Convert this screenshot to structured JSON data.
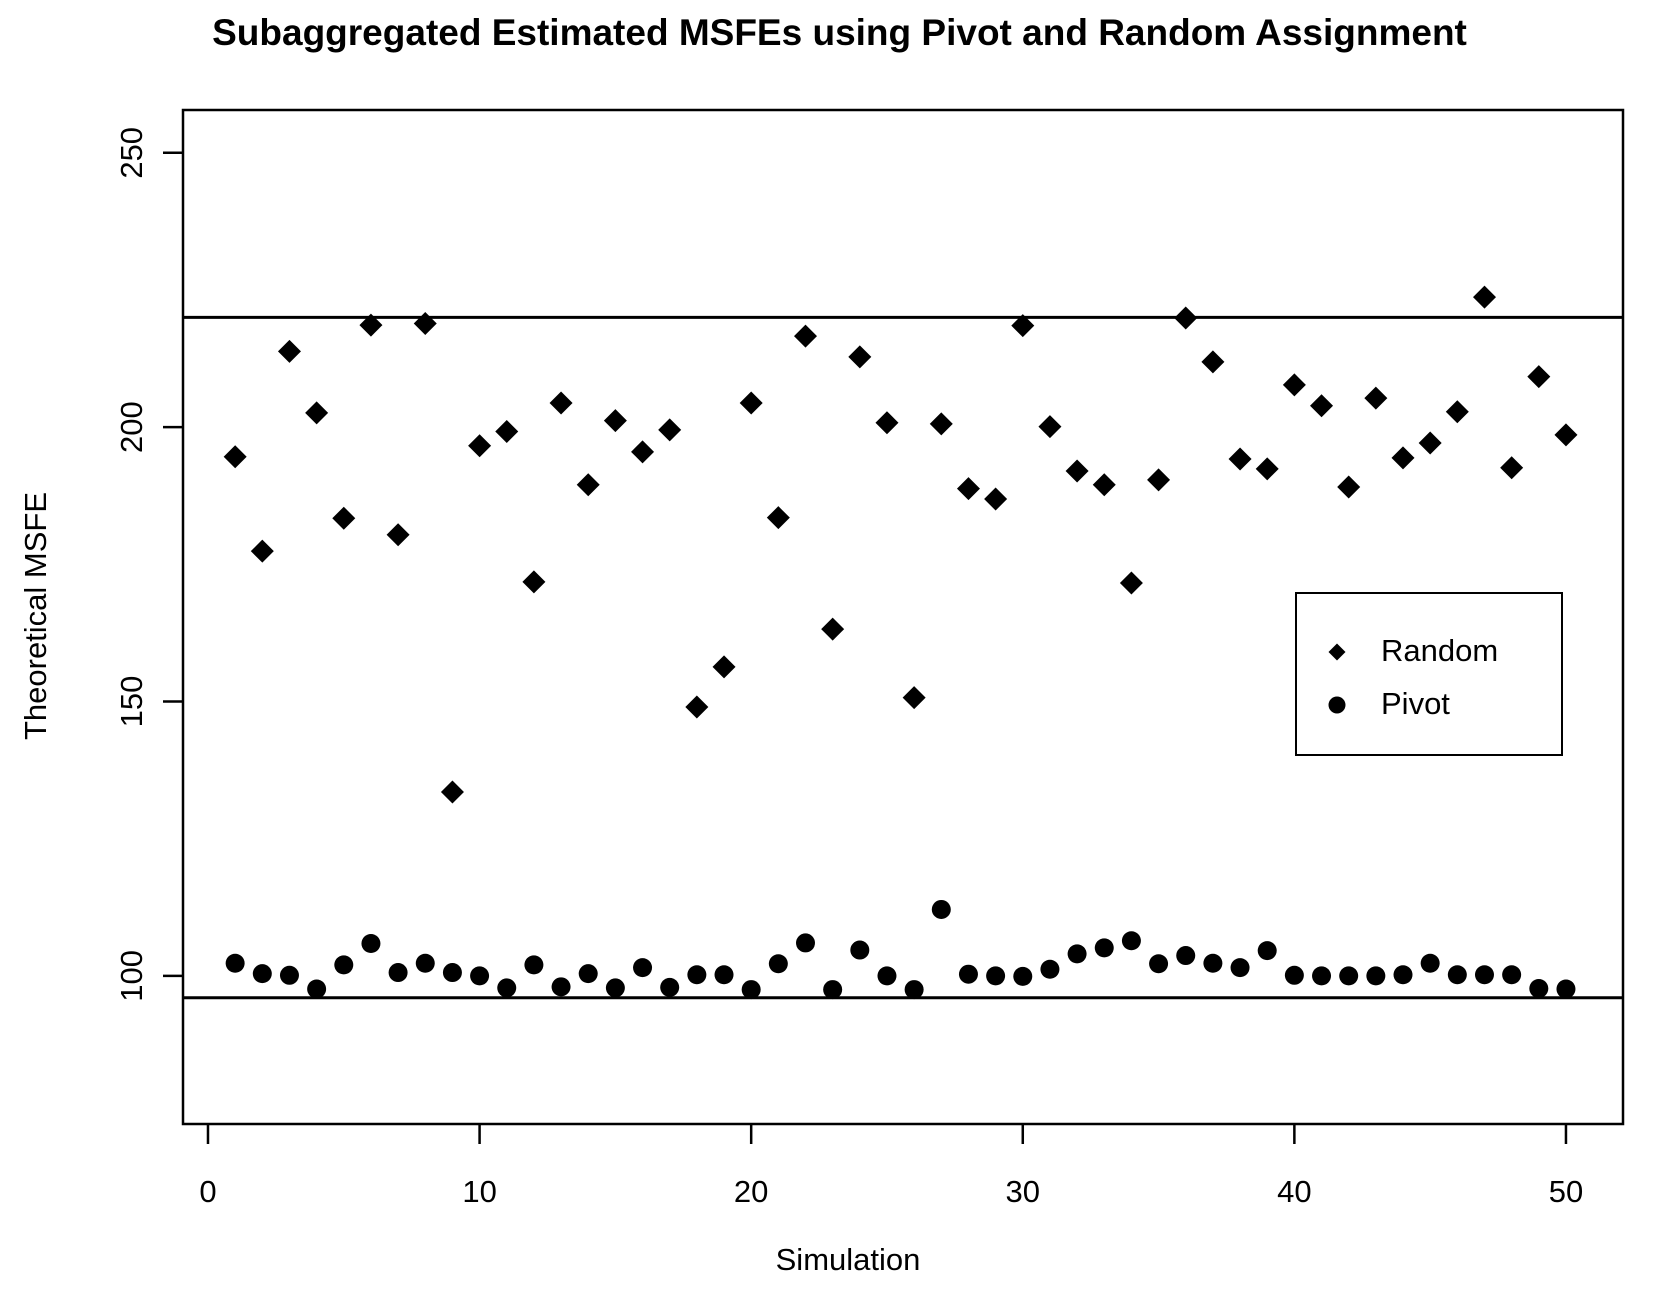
{
  "chart_data": {
    "type": "scatter",
    "title": "Subaggregated Estimated MSFEs using Pivot and Random Assignment",
    "xlabel": "Simulation",
    "ylabel": "Theoretical MSFE",
    "x_ticks": [
      0,
      10,
      20,
      30,
      40,
      50
    ],
    "y_ticks": [
      100,
      150,
      200,
      250
    ],
    "xlim": [
      -0.92,
      52.1
    ],
    "ylim": [
      73,
      257.8
    ],
    "grid": false,
    "hlines": [
      220,
      96
    ],
    "legend_position": "right-middle",
    "x": [
      1,
      2,
      3,
      4,
      5,
      6,
      7,
      8,
      9,
      10,
      11,
      12,
      13,
      14,
      15,
      16,
      17,
      18,
      19,
      20,
      21,
      22,
      23,
      24,
      25,
      26,
      27,
      28,
      29,
      30,
      31,
      32,
      33,
      34,
      35,
      36,
      37,
      38,
      39,
      40,
      41,
      42,
      43,
      44,
      45,
      46,
      47,
      48,
      49,
      50
    ],
    "series": [
      {
        "name": "Random",
        "marker": "diamond",
        "values": [
          194.6,
          177.4,
          213.8,
          202.6,
          183.4,
          218.6,
          180.4,
          218.9,
          133.5,
          196.6,
          199.2,
          171.8,
          204.4,
          189.5,
          201.2,
          195.5,
          199.5,
          149.0,
          156.3,
          204.4,
          183.5,
          216.6,
          163.2,
          212.8,
          200.8,
          150.7,
          200.6,
          188.8,
          186.9,
          218.5,
          200.1,
          192.0,
          189.5,
          171.6,
          190.4,
          219.9,
          211.9,
          194.2,
          192.4,
          207.7,
          203.9,
          189.1,
          205.3,
          194.4,
          197.1,
          202.8,
          223.7,
          192.6,
          209.2,
          198.6
        ]
      },
      {
        "name": "Pivot",
        "marker": "circle",
        "values": [
          102.3,
          100.4,
          100.1,
          97.6,
          102.0,
          105.9,
          100.6,
          102.3,
          100.6,
          100.0,
          97.8,
          102.0,
          98.0,
          100.4,
          97.8,
          101.5,
          97.9,
          100.2,
          100.2,
          97.5,
          102.2,
          106.0,
          97.5,
          104.7,
          100.0,
          97.5,
          112.1,
          100.3,
          100.0,
          99.9,
          101.2,
          104.0,
          105.1,
          106.4,
          102.2,
          103.7,
          102.3,
          101.5,
          104.6,
          100.1,
          100.0,
          100.0,
          100.0,
          100.2,
          102.3,
          100.2,
          100.2,
          100.2,
          97.7,
          97.6
        ]
      }
    ]
  },
  "colors": {
    "foreground": "#000000",
    "background": "#ffffff"
  }
}
